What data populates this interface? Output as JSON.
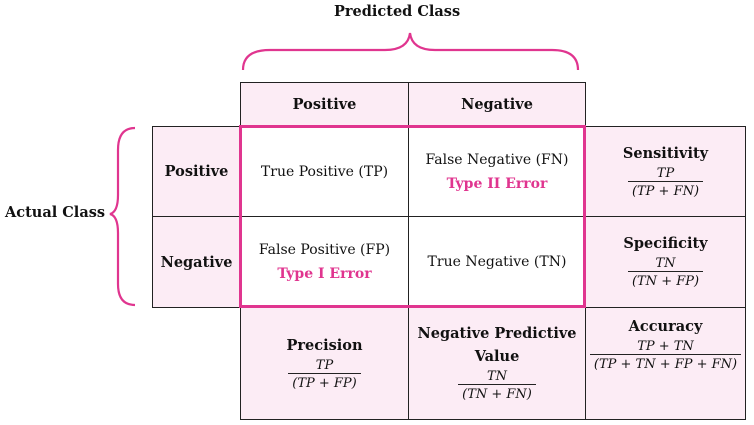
{
  "predicted_label": "Predicted Class",
  "actual_label": "Actual Class",
  "col_headers": [
    "Positive",
    "Negative"
  ],
  "row_headers": [
    "Positive",
    "Negative"
  ],
  "cells": {
    "tp": "True Positive (TP)",
    "fn": "False Negative (FN)",
    "fn_err": "Type II Error",
    "fp": "False Positive (FP)",
    "fp_err": "Type I Error",
    "tn": "True Negative (TN)"
  },
  "metrics": {
    "sensitivity": {
      "title": "Sensitivity",
      "num": "TP",
      "den": "(TP + FN)"
    },
    "specificity": {
      "title": "Specificity",
      "num": "TN",
      "den": "(TN + FP)"
    },
    "precision": {
      "title": "Precision",
      "num": "TP",
      "den": "(TP + FP)"
    },
    "npv": {
      "title": "Negative Predictive",
      "title2": "Value",
      "num": "TN",
      "den": "(TN + FN)"
    },
    "accuracy": {
      "title": "Accuracy",
      "num": "TP + TN",
      "den": "(TP + TN + FP + FN)"
    }
  },
  "colors": {
    "accent": "#e0358f",
    "fill": "#fcecf5"
  }
}
